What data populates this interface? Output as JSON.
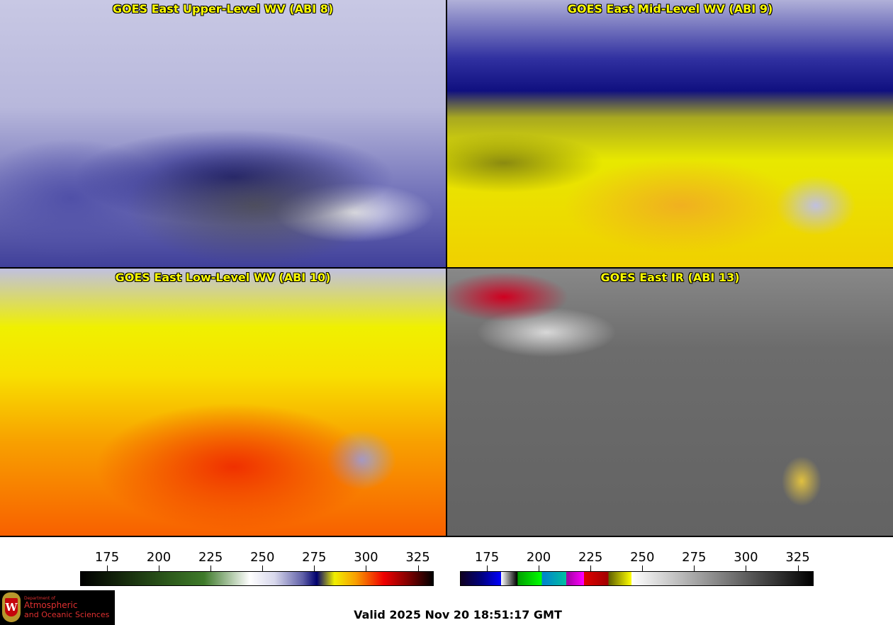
{
  "panels": [
    {
      "title": "GOES East Upper-Level WV (ABI 8)"
    },
    {
      "title": "GOES East Mid-Level WV (ABI 9)"
    },
    {
      "title": "GOES East Low-Level WV (ABI 10)"
    },
    {
      "title": "GOES East IR (ABI 13)"
    }
  ],
  "colorbars": [
    {
      "name": "water-vapor",
      "range": [
        162,
        332
      ],
      "ticks": [
        "175",
        "200",
        "225",
        "250",
        "275",
        "300",
        "325"
      ]
    },
    {
      "name": "infrared",
      "range": [
        162,
        332
      ],
      "ticks": [
        "175",
        "200",
        "225",
        "250",
        "275",
        "300",
        "325"
      ]
    }
  ],
  "logo": {
    "line1": "Department of",
    "line2": "Atmospheric",
    "line3": "and Oceanic Sciences",
    "crest_letter": "W"
  },
  "valid_time": "Valid 2025 Nov 20 18:51:17 GMT"
}
